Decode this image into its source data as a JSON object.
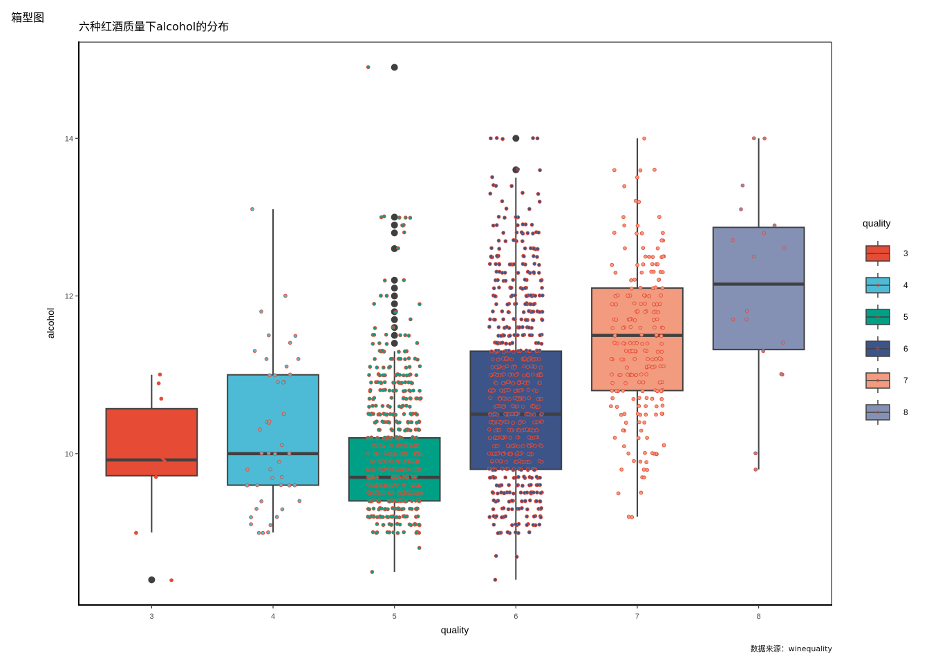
{
  "figure": {
    "label": "箱型图",
    "caption": "数据来源：winequality"
  },
  "chart_data": {
    "type": "box",
    "title": "六种红酒质量下alcohol的分布",
    "xlabel": "quality",
    "ylabel": "alcohol",
    "categories": [
      "3",
      "4",
      "5",
      "6",
      "7",
      "8"
    ],
    "ylim": [
      8.08,
      15.22
    ],
    "yticks": [
      10,
      12,
      14
    ],
    "grid": false,
    "legend": {
      "title": "quality",
      "position": "right",
      "entries": [
        "3",
        "4",
        "5",
        "6",
        "7",
        "8"
      ]
    },
    "colors": {
      "3": "#E64B35",
      "4": "#4DBBD5",
      "5": "#00A087",
      "6": "#3C5488",
      "7": "#F39B7F",
      "8": "#8491B4"
    },
    "point_outline": "#E64B35",
    "box_line": "#404040",
    "boxes": [
      {
        "quality": "3",
        "q1": 9.72,
        "median": 9.92,
        "q3": 10.57,
        "whisker_low": 9.0,
        "whisker_high": 11.0,
        "outliers": [
          8.4
        ]
      },
      {
        "quality": "4",
        "q1": 9.6,
        "median": 10.0,
        "q3": 11.0,
        "whisker_low": 9.0,
        "whisker_high": 13.1,
        "outliers": []
      },
      {
        "quality": "5",
        "q1": 9.4,
        "median": 9.7,
        "q3": 10.2,
        "whisker_low": 8.5,
        "whisker_high": 11.3,
        "outliers": [
          11.4,
          11.5,
          11.6,
          11.7,
          11.8,
          11.9,
          12.0,
          12.1,
          12.2,
          12.6,
          12.8,
          12.9,
          13.0,
          14.9
        ]
      },
      {
        "quality": "6",
        "q1": 9.8,
        "median": 10.5,
        "q3": 11.3,
        "whisker_low": 8.4,
        "whisker_high": 13.5,
        "outliers": [
          13.6,
          14.0
        ]
      },
      {
        "quality": "7",
        "q1": 10.8,
        "median": 11.5,
        "q3": 12.1,
        "whisker_low": 9.2,
        "whisker_high": 14.0,
        "outliers": []
      },
      {
        "quality": "8",
        "q1": 11.32,
        "median": 12.15,
        "q3": 12.87,
        "whisker_low": 9.8,
        "whisker_high": 14.0,
        "outliers": []
      }
    ],
    "points": {
      "3": [
        11.0,
        10.9,
        10.7,
        10.2,
        9.95,
        9.9,
        9.8,
        9.7,
        9.0,
        8.4
      ],
      "4": [
        13.1,
        12.0,
        11.8,
        11.5,
        11.5,
        11.4,
        11.3,
        11.2,
        11.2,
        11.1,
        11.0,
        11.0,
        11.0,
        10.9,
        10.9,
        10.9,
        10.5,
        10.4,
        10.4,
        10.4,
        10.3,
        10.1,
        10.0,
        10.0,
        10.0,
        10.0,
        9.9,
        9.8,
        9.8,
        9.7,
        9.7,
        9.6,
        9.6,
        9.6,
        9.6,
        9.6,
        9.4,
        9.4,
        9.3,
        9.3,
        9.2,
        9.2,
        9.1,
        9.1,
        9.0,
        9.0,
        9.0
      ],
      "5_levels": [
        [
          14.9,
          1
        ],
        [
          13.0,
          5
        ],
        [
          12.9,
          3
        ],
        [
          12.8,
          1
        ],
        [
          12.6,
          1
        ],
        [
          12.2,
          2
        ],
        [
          12.0,
          2
        ],
        [
          11.9,
          2
        ],
        [
          11.8,
          1
        ],
        [
          11.7,
          1
        ],
        [
          11.6,
          2
        ],
        [
          11.5,
          6
        ],
        [
          11.4,
          4
        ],
        [
          11.3,
          8
        ],
        [
          11.2,
          10
        ],
        [
          11.1,
          8
        ],
        [
          11.0,
          14
        ],
        [
          10.9,
          16
        ],
        [
          10.8,
          14
        ],
        [
          10.7,
          14
        ],
        [
          10.6,
          12
        ],
        [
          10.5,
          24
        ],
        [
          10.4,
          20
        ],
        [
          10.3,
          16
        ],
        [
          10.2,
          22
        ],
        [
          10.1,
          22
        ],
        [
          10.0,
          26
        ],
        [
          9.9,
          24
        ],
        [
          9.8,
          28
        ],
        [
          9.7,
          26
        ],
        [
          9.6,
          26
        ],
        [
          9.5,
          36
        ],
        [
          9.4,
          34
        ],
        [
          9.3,
          26
        ],
        [
          9.2,
          24
        ],
        [
          9.1,
          16
        ],
        [
          9.0,
          12
        ],
        [
          8.8,
          1
        ],
        [
          8.5,
          1
        ]
      ],
      "6_levels": [
        [
          14.0,
          5
        ],
        [
          13.6,
          2
        ],
        [
          13.5,
          1
        ],
        [
          13.4,
          3
        ],
        [
          13.3,
          3
        ],
        [
          13.2,
          2
        ],
        [
          13.1,
          2
        ],
        [
          13.0,
          4
        ],
        [
          12.9,
          6
        ],
        [
          12.8,
          8
        ],
        [
          12.7,
          6
        ],
        [
          12.6,
          8
        ],
        [
          12.5,
          12
        ],
        [
          12.4,
          12
        ],
        [
          12.3,
          10
        ],
        [
          12.2,
          10
        ],
        [
          12.1,
          10
        ],
        [
          12.0,
          16
        ],
        [
          11.9,
          12
        ],
        [
          11.8,
          12
        ],
        [
          11.7,
          14
        ],
        [
          11.6,
          14
        ],
        [
          11.5,
          16
        ],
        [
          11.4,
          14
        ],
        [
          11.3,
          20
        ],
        [
          11.2,
          22
        ],
        [
          11.1,
          18
        ],
        [
          11.0,
          24
        ],
        [
          10.9,
          18
        ],
        [
          10.8,
          20
        ],
        [
          10.7,
          20
        ],
        [
          10.6,
          18
        ],
        [
          10.5,
          24
        ],
        [
          10.4,
          22
        ],
        [
          10.3,
          18
        ],
        [
          10.2,
          20
        ],
        [
          10.1,
          18
        ],
        [
          10.0,
          22
        ],
        [
          9.9,
          16
        ],
        [
          9.8,
          18
        ],
        [
          9.7,
          16
        ],
        [
          9.6,
          14
        ],
        [
          9.5,
          20
        ],
        [
          9.4,
          14
        ],
        [
          9.3,
          12
        ],
        [
          9.2,
          12
        ],
        [
          9.1,
          10
        ],
        [
          9.0,
          8
        ],
        [
          8.7,
          2
        ],
        [
          8.4,
          1
        ]
      ],
      "7_levels": [
        [
          14.0,
          1
        ],
        [
          13.6,
          3
        ],
        [
          13.5,
          1
        ],
        [
          13.4,
          1
        ],
        [
          13.2,
          2
        ],
        [
          13.0,
          2
        ],
        [
          12.9,
          2
        ],
        [
          12.8,
          4
        ],
        [
          12.7,
          2
        ],
        [
          12.6,
          3
        ],
        [
          12.5,
          6
        ],
        [
          12.4,
          6
        ],
        [
          12.3,
          6
        ],
        [
          12.2,
          4
        ],
        [
          12.1,
          5
        ],
        [
          12.0,
          9
        ],
        [
          11.9,
          8
        ],
        [
          11.8,
          8
        ],
        [
          11.7,
          8
        ],
        [
          11.6,
          8
        ],
        [
          11.5,
          6
        ],
        [
          11.4,
          10
        ],
        [
          11.3,
          10
        ],
        [
          11.2,
          10
        ],
        [
          11.1,
          8
        ],
        [
          11.0,
          11
        ],
        [
          10.9,
          6
        ],
        [
          10.8,
          10
        ],
        [
          10.7,
          6
        ],
        [
          10.6,
          6
        ],
        [
          10.5,
          8
        ],
        [
          10.4,
          3
        ],
        [
          10.3,
          3
        ],
        [
          10.2,
          3
        ],
        [
          10.1,
          2
        ],
        [
          10.0,
          6
        ],
        [
          9.9,
          3
        ],
        [
          9.8,
          3
        ],
        [
          9.7,
          2
        ],
        [
          9.5,
          2
        ],
        [
          9.2,
          2
        ]
      ],
      "8": [
        14.0,
        14.0,
        13.4,
        13.1,
        12.9,
        12.8,
        12.7,
        12.6,
        12.5,
        11.8,
        11.7,
        11.7,
        11.4,
        11.3,
        11.0,
        11.0,
        10.0,
        9.8
      ]
    }
  }
}
